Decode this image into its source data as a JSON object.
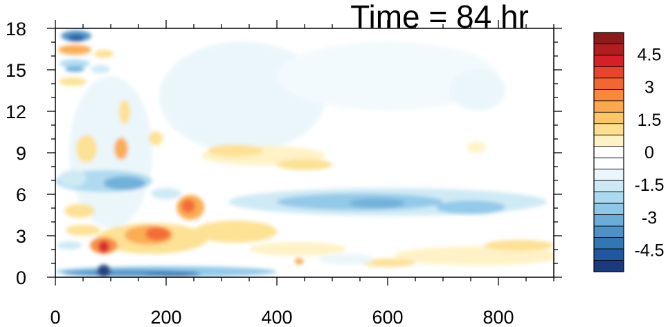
{
  "title": "Time = 84 hr",
  "chart_data": {
    "type": "heatmap",
    "title": "Time = 84 hr",
    "xlabel": "",
    "ylabel": "",
    "xlim": [
      0,
      900
    ],
    "ylim": [
      0,
      18
    ],
    "x_ticks": [
      0,
      200,
      400,
      600,
      800
    ],
    "y_ticks": [
      0,
      3,
      6,
      9,
      12,
      15,
      18
    ],
    "grid": false,
    "colorbar": {
      "levels": [
        -5.5,
        -5,
        -4.5,
        -4,
        -3.5,
        -3,
        -2.5,
        -2,
        -1.5,
        -1,
        -0.5,
        0,
        0.5,
        1,
        1.5,
        2,
        2.5,
        3,
        3.5,
        4,
        4.5,
        5,
        5.5
      ],
      "labels": [
        "4.5",
        "3",
        "1.5",
        "0",
        "-1.5",
        "-3",
        "-4.5"
      ],
      "label_values": [
        4.5,
        3,
        1.5,
        0,
        -1.5,
        -3,
        -4.5
      ],
      "colors_top_to_bottom": [
        "#8b1a1a",
        "#b01c20",
        "#d62027",
        "#e8432b",
        "#f4662f",
        "#f9893a",
        "#fba94c",
        "#fdc768",
        "#fde08f",
        "#fff2c4",
        "#ffffff",
        "#ffffff",
        "#eaf6fb",
        "#cce9f5",
        "#abd9ef",
        "#8ec7e8",
        "#6badd9",
        "#4d92c6",
        "#3276b3",
        "#2058a0",
        "#1a3a7d"
      ]
    },
    "features": [
      {
        "x": 88,
        "y": 2.4,
        "value": 4.5
      },
      {
        "x": 180,
        "y": 2.8,
        "value": 3.5
      },
      {
        "x": 245,
        "y": 5.3,
        "value": 3.5
      },
      {
        "x": 110,
        "y": 3.3,
        "value": 1.5
      },
      {
        "x": 30,
        "y": 16.5,
        "value": 2.5
      },
      {
        "x": 120,
        "y": 9.0,
        "value": 2.0
      },
      {
        "x": 380,
        "y": 8.9,
        "value": 1.5
      },
      {
        "x": 650,
        "y": 1.2,
        "value": 1.0
      },
      {
        "x": 30,
        "y": 17.6,
        "value": -4.0
      },
      {
        "x": 30,
        "y": 15.2,
        "value": -2.5
      },
      {
        "x": 120,
        "y": 6.8,
        "value": -3.0
      },
      {
        "x": 560,
        "y": 5.4,
        "value": -2.5
      },
      {
        "x": 700,
        "y": 4.8,
        "value": -2.0
      },
      {
        "x": 160,
        "y": 0.4,
        "value": -4.5
      },
      {
        "x": 300,
        "y": 0.3,
        "value": -3.0
      },
      {
        "x": 350,
        "y": 13.0,
        "value": -1.0
      }
    ]
  }
}
